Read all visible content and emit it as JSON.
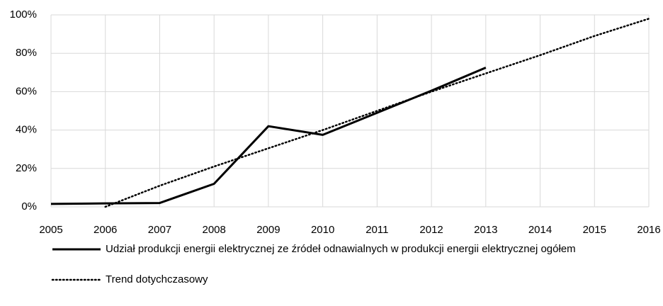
{
  "chart_data": {
    "type": "line",
    "x": [
      2005,
      2006,
      2007,
      2008,
      2009,
      2010,
      2011,
      2012,
      2013,
      2014,
      2015,
      2016
    ],
    "xlim": [
      2005,
      2016
    ],
    "xticks": [
      2005,
      2006,
      2007,
      2008,
      2009,
      2010,
      2011,
      2012,
      2013,
      2014,
      2015,
      2016
    ],
    "ylim": [
      0,
      100
    ],
    "yticks": [
      {
        "value": 0,
        "label": "0%"
      },
      {
        "value": 20,
        "label": "20%"
      },
      {
        "value": 40,
        "label": "40%"
      },
      {
        "value": 60,
        "label": "60%"
      },
      {
        "value": 80,
        "label": "80%"
      },
      {
        "value": 100,
        "label": "100%"
      }
    ],
    "grid": true,
    "series": [
      {
        "name": "Udział produkcji energii elektrycznej ze źródeł odnawialnych w produkcji energii elektrycznej ogółem",
        "color": "#000000",
        "style": "solid",
        "values": [
          1.5,
          1.8,
          2,
          12,
          42,
          37.5,
          49,
          60.5,
          72.5,
          null,
          null,
          null
        ]
      },
      {
        "name": "Trend dotychczasowy",
        "color": "#000000",
        "style": "dotted",
        "values": [
          null,
          0,
          11,
          21,
          30.5,
          40,
          50,
          60,
          69.5,
          79,
          89,
          98
        ]
      }
    ]
  }
}
